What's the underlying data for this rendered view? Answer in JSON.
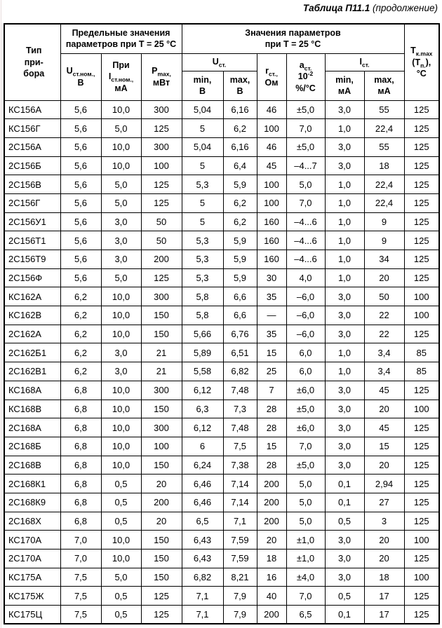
{
  "caption": {
    "label": "Таблица П11.1",
    "continuation": "(продолжение)"
  },
  "table": {
    "header": {
      "type": "Тип\nпри-\nбора",
      "limits_group": "Предельные значения\nпараметров при Т = 25 °С",
      "params_group": "Значения параметров\nпри Т = 25 °С",
      "u_nom": {
        "base": "U",
        "sub": "ст.ном.,",
        "unit": "В"
      },
      "i_nom": {
        "pre": "При",
        "base": "I",
        "sub": "ст.ном.,",
        "unit": "мА"
      },
      "p_max": {
        "base": "P",
        "sub": "max,",
        "unit": "мВт"
      },
      "u_st": {
        "base": "U",
        "sub": "ст."
      },
      "min_v": "min,\nВ",
      "max_v": "max,\nВ",
      "r_st": {
        "base": "r",
        "sub": "ст.,",
        "unit": "Ом"
      },
      "a_st": {
        "base": "a",
        "sub": "ст.",
        "pow_base": "10",
        "pow_exp": "-2",
        "unit": "%/°С"
      },
      "i_st": {
        "base": "I",
        "sub": "ст."
      },
      "min_ma": "min,\nмА",
      "max_ma": "max,\nмА",
      "t_max": {
        "base": "T",
        "sub": "к.max",
        "paren_open": "(T",
        "paren_sub": "п.",
        "paren_close": "),",
        "unit": "°С"
      }
    },
    "rows": [
      [
        "КС156А",
        "5,6",
        "10,0",
        "300",
        "5,04",
        "6,16",
        "46",
        "±5,0",
        "3,0",
        "55",
        "125"
      ],
      [
        "КС156Г",
        "5,6",
        "5,0",
        "125",
        "5",
        "6,2",
        "100",
        "7,0",
        "1,0",
        "22,4",
        "125"
      ],
      [
        "2С156А",
        "5,6",
        "10,0",
        "300",
        "5,04",
        "6,16",
        "46",
        "±5,0",
        "3,0",
        "55",
        "125"
      ],
      [
        "2С156Б",
        "5,6",
        "10,0",
        "100",
        "5",
        "6,4",
        "45",
        "–4...7",
        "3,0",
        "18",
        "125"
      ],
      [
        "2С156В",
        "5,6",
        "5,0",
        "125",
        "5,3",
        "5,9",
        "100",
        "5,0",
        "1,0",
        "22,4",
        "125"
      ],
      [
        "2С156Г",
        "5,6",
        "5,0",
        "125",
        "5",
        "6,2",
        "100",
        "7,0",
        "1,0",
        "22,4",
        "125"
      ],
      [
        "2С156У1",
        "5,6",
        "3,0",
        "50",
        "5",
        "6,2",
        "160",
        "–4...6",
        "1,0",
        "9",
        "125"
      ],
      [
        "2С156Т1",
        "5,6",
        "3,0",
        "50",
        "5,3",
        "5,9",
        "160",
        "–4...6",
        "1,0",
        "9",
        "125"
      ],
      [
        "2С156Т9",
        "5,6",
        "3,0",
        "200",
        "5,3",
        "5,9",
        "160",
        "–4...6",
        "1,0",
        "34",
        "125"
      ],
      [
        "2С156Ф",
        "5,6",
        "5,0",
        "125",
        "5,3",
        "5,9",
        "30",
        "4,0",
        "1,0",
        "20",
        "125"
      ],
      [
        "КС162А",
        "6,2",
        "10,0",
        "300",
        "5,8",
        "6,6",
        "35",
        "–6,0",
        "3,0",
        "50",
        "100"
      ],
      [
        "КС162В",
        "6,2",
        "10,0",
        "150",
        "5,8",
        "6,6",
        "—",
        "–6,0",
        "3,0",
        "22",
        "100"
      ],
      [
        "2С162А",
        "6,2",
        "10,0",
        "150",
        "5,66",
        "6,76",
        "35",
        "–6,0",
        "3,0",
        "22",
        "125"
      ],
      [
        "2С162Б1",
        "6,2",
        "3,0",
        "21",
        "5,89",
        "6,51",
        "15",
        "6,0",
        "1,0",
        "3,4",
        "85"
      ],
      [
        "2С162В1",
        "6,2",
        "3,0",
        "21",
        "5,58",
        "6,82",
        "25",
        "6,0",
        "1,0",
        "3,4",
        "85"
      ],
      [
        "КС168А",
        "6,8",
        "10,0",
        "300",
        "6,12",
        "7,48",
        "7",
        "±6,0",
        "3,0",
        "45",
        "125"
      ],
      [
        "КС168В",
        "6,8",
        "10,0",
        "150",
        "6,3",
        "7,3",
        "28",
        "±5,0",
        "3,0",
        "20",
        "100"
      ],
      [
        "2С168А",
        "6,8",
        "10,0",
        "300",
        "6,12",
        "7,48",
        "28",
        "±6,0",
        "3,0",
        "45",
        "125"
      ],
      [
        "2С168Б",
        "6,8",
        "10,0",
        "100",
        "6",
        "7,5",
        "15",
        "7,0",
        "3,0",
        "15",
        "125"
      ],
      [
        "2С168В",
        "6,8",
        "10,0",
        "150",
        "6,24",
        "7,38",
        "28",
        "±5,0",
        "3,0",
        "20",
        "125"
      ],
      [
        "2С168К1",
        "6,8",
        "0,5",
        "20",
        "6,46",
        "7,14",
        "200",
        "5,0",
        "0,1",
        "2,94",
        "125"
      ],
      [
        "2С168К9",
        "6,8",
        "0,5",
        "200",
        "6,46",
        "7,14",
        "200",
        "5,0",
        "0,1",
        "27",
        "125"
      ],
      [
        "2С168Х",
        "6,8",
        "0,5",
        "20",
        "6,5",
        "7,1",
        "200",
        "5,0",
        "0,5",
        "3",
        "125"
      ],
      [
        "КС170А",
        "7,0",
        "10,0",
        "150",
        "6,43",
        "7,59",
        "20",
        "±1,0",
        "3,0",
        "20",
        "100"
      ],
      [
        "2С170А",
        "7,0",
        "10,0",
        "150",
        "6,43",
        "7,59",
        "18",
        "±1,0",
        "3,0",
        "20",
        "125"
      ],
      [
        "КС175А",
        "7,5",
        "5,0",
        "150",
        "6,82",
        "8,21",
        "16",
        "±4,0",
        "3,0",
        "18",
        "100"
      ],
      [
        "КС175Ж",
        "7,5",
        "0,5",
        "125",
        "7,1",
        "7,9",
        "40",
        "7,0",
        "0,5",
        "17",
        "125"
      ],
      [
        "КС175Ц",
        "7,5",
        "0,5",
        "125",
        "7,1",
        "7,9",
        "200",
        "6,5",
        "0,1",
        "17",
        "125"
      ]
    ]
  }
}
